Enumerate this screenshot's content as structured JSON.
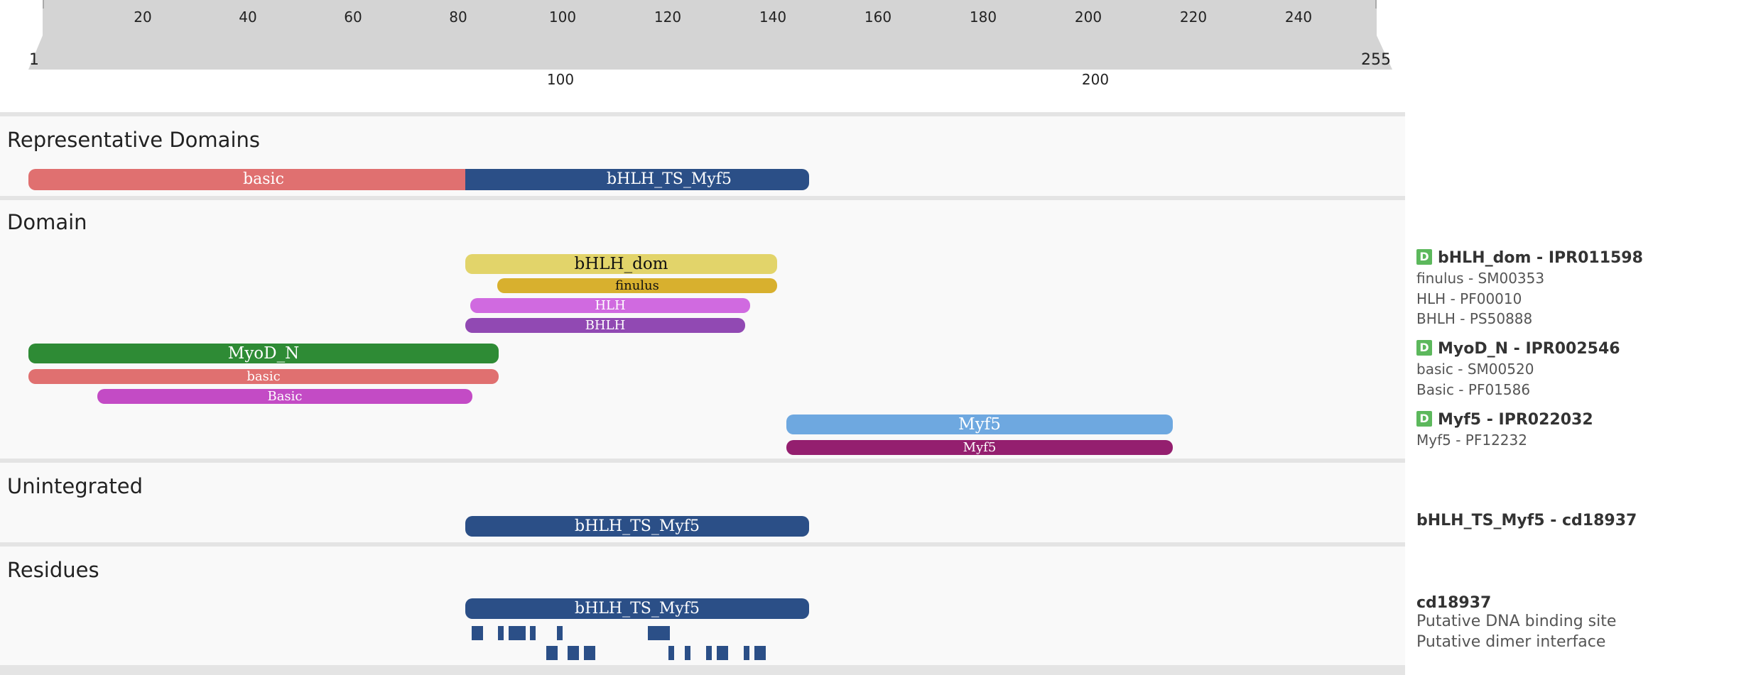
{
  "ruler": {
    "ticks": [
      "20",
      "40",
      "60",
      "80",
      "100",
      "120",
      "140",
      "160",
      "180",
      "200",
      "220",
      "240"
    ],
    "start": "1",
    "end": "255",
    "overview_ticks": [
      "100",
      "200"
    ]
  },
  "sections": {
    "representative": "Representative Domains",
    "domain": "Domain",
    "unintegrated": "Unintegrated",
    "residues": "Residues"
  },
  "representative_bars": {
    "basic": "basic",
    "bhlh_ts": "bHLH_TS_Myf5"
  },
  "domain_bars": {
    "bhlh_dom": "bHLH_dom",
    "finulus": "finulus",
    "hlh": "HLH",
    "bhlh": "BHLH",
    "myod_n": "MyoD_N",
    "basic": "basic",
    "basic2": "Basic",
    "myf5": "Myf5",
    "myf5_2": "Myf5"
  },
  "domain_labels": {
    "badge": "D",
    "g1_main": "bHLH_dom - IPR011598",
    "g1_s1": "finulus - SM00353",
    "g1_s2": "HLH - PF00010",
    "g1_s3": "BHLH - PS50888",
    "g2_main": "MyoD_N - IPR002546",
    "g2_s1": "basic - SM00520",
    "g2_s2": "Basic - PF01586",
    "g3_main": "Myf5 - IPR022032",
    "g3_s1": "Myf5 - PF12232"
  },
  "unintegrated": {
    "bar": "bHLH_TS_Myf5",
    "label": "bHLH_TS_Myf5 - cd18937"
  },
  "residues": {
    "bar": "bHLH_TS_Myf5",
    "label_main": "cd18937",
    "label_1": "Putative DNA binding site",
    "label_2": "Putative dimer interface"
  },
  "colors": {
    "basic": "#e07070",
    "bhlh_ts": "#2b4f87",
    "bhlh_dom": "#e2d46a",
    "finulus": "#d8b02e",
    "hlh": "#d06ae0",
    "bhlh": "#9149b3",
    "myod_n": "#2e8b35",
    "basic2": "#c34bc5",
    "myf5": "#6ea8e0",
    "myf5_2": "#941f6f"
  }
}
